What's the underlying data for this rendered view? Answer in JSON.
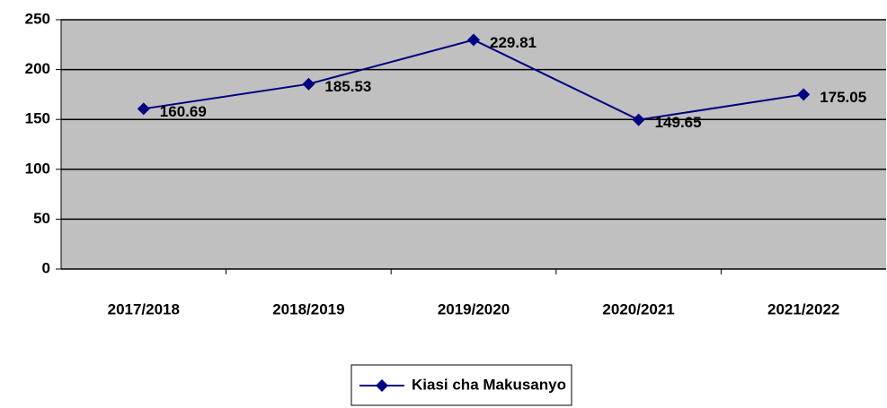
{
  "chart_data": {
    "type": "line",
    "categories": [
      "2017/2018",
      "2018/2019",
      "2019/2020",
      "2020/2021",
      "2021/2022"
    ],
    "series": [
      {
        "name": "Kiasi cha Makusanyo",
        "color": "#000080",
        "values": [
          160.69,
          185.53,
          229.81,
          149.65,
          175.05
        ]
      }
    ],
    "ylim": [
      0,
      250
    ],
    "yticks": [
      0,
      50,
      100,
      150,
      200,
      250
    ],
    "grid": true,
    "plot_background": "#c0c0c0",
    "data_labels": true,
    "legend": "bottom"
  }
}
